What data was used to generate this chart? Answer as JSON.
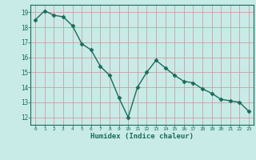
{
  "x": [
    0,
    1,
    2,
    3,
    4,
    5,
    6,
    7,
    8,
    9,
    10,
    11,
    12,
    13,
    14,
    15,
    16,
    17,
    18,
    19,
    20,
    21,
    22,
    23
  ],
  "y": [
    18.5,
    19.1,
    18.8,
    18.7,
    18.1,
    16.9,
    16.5,
    15.4,
    14.8,
    13.3,
    12.0,
    14.0,
    15.0,
    15.8,
    15.3,
    14.8,
    14.4,
    14.3,
    13.9,
    13.6,
    13.2,
    13.1,
    13.0,
    12.4
  ],
  "xlabel": "Humidex (Indice chaleur)",
  "bg_color": "#c8ebe8",
  "grid_color": "#a8d5d0",
  "line_color": "#1a6b5a",
  "marker_color": "#1a6b5a",
  "xlim": [
    -0.5,
    23.5
  ],
  "ylim": [
    11.5,
    19.5
  ],
  "yticks": [
    12,
    13,
    14,
    15,
    16,
    17,
    18,
    19
  ],
  "xticks": [
    0,
    1,
    2,
    3,
    4,
    5,
    6,
    7,
    8,
    9,
    10,
    11,
    12,
    13,
    14,
    15,
    16,
    17,
    18,
    19,
    20,
    21,
    22,
    23
  ]
}
